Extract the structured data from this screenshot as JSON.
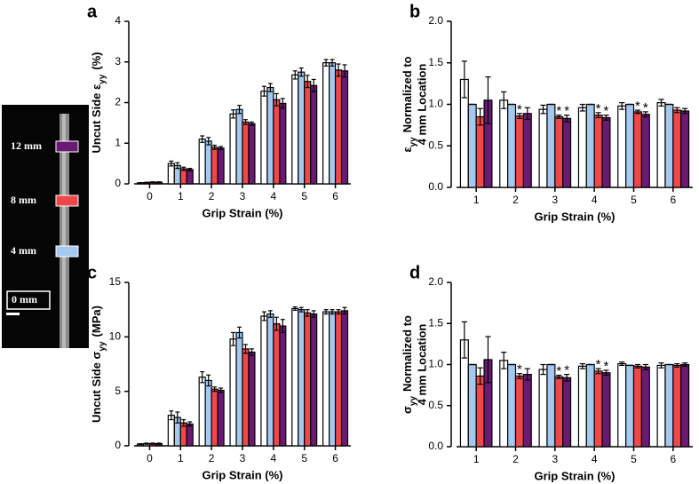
{
  "legend": [
    {
      "name": "0 mm",
      "color": "#ffffff"
    },
    {
      "name": "4 mm",
      "color": "#a4c8ee"
    },
    {
      "name": "8 mm",
      "color": "#f0474a"
    },
    {
      "name": "12 mm",
      "color": "#6a1a73"
    }
  ],
  "chart_data": [
    {
      "type": "bar",
      "label": "a",
      "xlabel": "Grip Strain (%)",
      "ylabel": {
        "before": "Uncut Side  ε",
        "sub": "yy",
        "after": "(%)"
      },
      "categories": [
        "0",
        "1",
        "2",
        "3",
        "4",
        "5",
        "6"
      ],
      "ylim": [
        0,
        4
      ],
      "yticks": [
        0,
        1,
        2,
        3,
        4
      ],
      "series": [
        {
          "values": [
            0.02,
            0.5,
            1.1,
            1.72,
            2.28,
            2.68,
            2.98
          ],
          "errors": [
            0.01,
            0.06,
            0.08,
            0.1,
            0.12,
            0.1,
            0.08
          ]
        },
        {
          "values": [
            0.03,
            0.45,
            1.05,
            1.83,
            2.37,
            2.75,
            2.98
          ],
          "errors": [
            0.01,
            0.07,
            0.09,
            0.1,
            0.1,
            0.1,
            0.08
          ]
        },
        {
          "values": [
            0.04,
            0.37,
            0.9,
            1.52,
            2.07,
            2.52,
            2.8
          ],
          "errors": [
            0.01,
            0.04,
            0.05,
            0.06,
            0.15,
            0.15,
            0.15
          ]
        },
        {
          "values": [
            0.04,
            0.35,
            0.88,
            1.48,
            1.98,
            2.42,
            2.78
          ],
          "errors": [
            0.01,
            0.03,
            0.04,
            0.04,
            0.12,
            0.15,
            0.15
          ]
        }
      ]
    },
    {
      "type": "bar",
      "label": "b",
      "xlabel": "Grip Strain (%)",
      "ylabel": {
        "before": "ε",
        "sub": "yy",
        "after": "Normalized to"
      },
      "ylabel2": "4 mm Location",
      "categories": [
        "1",
        "2",
        "3",
        "4",
        "5",
        "6"
      ],
      "ylim": [
        0,
        2
      ],
      "yticks": [
        {
          "value": 0,
          "label": "0.0"
        },
        0.5,
        {
          "value": 1,
          "label": "1.0"
        },
        1.5,
        {
          "value": 2,
          "label": "2.0"
        }
      ],
      "series": [
        {
          "values": [
            1.3,
            1.05,
            0.94,
            0.96,
            0.98,
            1.02
          ],
          "errors": [
            0.22,
            0.1,
            0.05,
            0.04,
            0.04,
            0.04
          ]
        },
        {
          "values": [
            1.0,
            1.0,
            1.0,
            1.0,
            1.0,
            1.0
          ],
          "errors": [
            0,
            0,
            0,
            0,
            0,
            0
          ]
        },
        {
          "values": [
            0.85,
            0.86,
            0.85,
            0.87,
            0.91,
            0.93
          ],
          "errors": [
            0.1,
            0.03,
            0.02,
            0.03,
            0.02,
            0.03
          ],
          "annotations": [
            null,
            "*",
            "*",
            "*",
            "*",
            null
          ]
        },
        {
          "values": [
            1.05,
            0.89,
            0.83,
            0.84,
            0.88,
            0.92
          ],
          "errors": [
            0.28,
            0.07,
            0.04,
            0.03,
            0.03,
            0.03
          ],
          "annotations": [
            null,
            null,
            "*",
            "*",
            "*",
            null
          ]
        }
      ]
    },
    {
      "type": "bar",
      "label": "c",
      "xlabel": "Grip Strain (%)",
      "ylabel": {
        "before": "Uncut Side  σ",
        "sub": "yy",
        "after": "(MPa)"
      },
      "categories": [
        "0",
        "1",
        "2",
        "3",
        "4",
        "5",
        "6"
      ],
      "ylim": [
        0,
        15
      ],
      "yticks": [
        0,
        5,
        10,
        15
      ],
      "series": [
        {
          "values": [
            0.15,
            2.8,
            6.3,
            9.8,
            11.9,
            12.6,
            12.3
          ],
          "errors": [
            0.05,
            0.4,
            0.5,
            0.6,
            0.4,
            0.15,
            0.2
          ]
        },
        {
          "values": [
            0.2,
            2.6,
            6.0,
            10.4,
            12.1,
            12.5,
            12.3
          ],
          "errors": [
            0.05,
            0.5,
            0.5,
            0.5,
            0.3,
            0.2,
            0.2
          ]
        },
        {
          "values": [
            0.2,
            2.1,
            5.2,
            8.9,
            11.2,
            12.2,
            12.3
          ],
          "errors": [
            0.05,
            0.3,
            0.2,
            0.4,
            0.6,
            0.3,
            0.2
          ]
        },
        {
          "values": [
            0.2,
            2.0,
            5.1,
            8.6,
            11.0,
            12.1,
            12.4
          ],
          "errors": [
            0.05,
            0.2,
            0.2,
            0.3,
            0.6,
            0.3,
            0.3
          ]
        }
      ]
    },
    {
      "type": "bar",
      "label": "d",
      "xlabel": "Grip Strain (%)",
      "ylabel": {
        "before": "σ",
        "sub": "yy",
        "after": "Normalized to"
      },
      "ylabel2": "4 mm Location",
      "categories": [
        "1",
        "2",
        "3",
        "4",
        "5",
        "6"
      ],
      "ylim": [
        0,
        2
      ],
      "yticks": [
        {
          "value": 0,
          "label": "0.0"
        },
        0.5,
        {
          "value": 1,
          "label": "1.0"
        },
        1.5,
        {
          "value": 2,
          "label": "2.0"
        }
      ],
      "series": [
        {
          "values": [
            1.3,
            1.05,
            0.94,
            0.98,
            1.01,
            0.99
          ],
          "errors": [
            0.22,
            0.1,
            0.06,
            0.03,
            0.02,
            0.03
          ]
        },
        {
          "values": [
            1.0,
            1.0,
            1.0,
            1.0,
            0.99,
            1.0
          ],
          "errors": [
            0,
            0,
            0,
            0,
            0,
            0
          ]
        },
        {
          "values": [
            0.86,
            0.86,
            0.85,
            0.92,
            0.98,
            0.99
          ],
          "errors": [
            0.1,
            0.03,
            0.02,
            0.03,
            0.02,
            0.02
          ],
          "annotations": [
            null,
            "*",
            "*",
            "*",
            null,
            null
          ]
        },
        {
          "values": [
            1.06,
            0.88,
            0.84,
            0.9,
            0.97,
            1.0
          ],
          "errors": [
            0.28,
            0.07,
            0.04,
            0.03,
            0.03,
            0.02
          ],
          "annotations": [
            null,
            null,
            "*",
            "*",
            null,
            null
          ]
        }
      ]
    }
  ]
}
